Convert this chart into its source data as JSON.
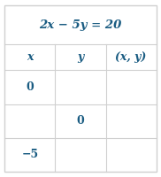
{
  "title": "2x − 5y = 20",
  "title_color": "#1a5c82",
  "header": [
    "x",
    "y",
    "(x, y)"
  ],
  "rows": [
    [
      "0",
      "",
      ""
    ],
    [
      "",
      "0",
      ""
    ],
    [
      "−5",
      "",
      ""
    ]
  ],
  "bg_color": "#ffffff",
  "border_color": "#d0d0d0",
  "text_color": "#1a5c82",
  "title_fontsize": 9.5,
  "header_fontsize": 9.0,
  "cell_fontsize": 9.0,
  "fig_width": 1.82,
  "fig_height": 2.0,
  "dpi": 100
}
